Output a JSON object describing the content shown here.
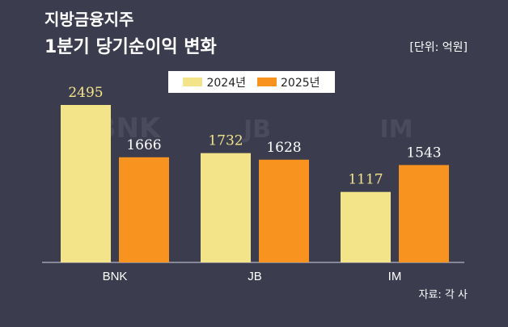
{
  "title_line1": "지방금융지주",
  "title_line2": "1분기 당기순이익 변화",
  "unit_label": "[단위: 억원]",
  "source": "자료: 각 사",
  "watermarks": [
    "BNK",
    "JB",
    "IM"
  ],
  "colors": {
    "background": "#3b3d4f",
    "series_2024": "#f3e48a",
    "series_2025": "#f7931e",
    "label_2024": "#f3e48a",
    "label_2025": "#ffffff"
  },
  "chart_data": {
    "type": "bar",
    "categories": [
      "BNK",
      "JB",
      "IM"
    ],
    "series": [
      {
        "name": "2024년",
        "values": [
          2495,
          1732,
          1117
        ]
      },
      {
        "name": "2025년",
        "values": [
          1666,
          1628,
          1543
        ]
      }
    ],
    "ylim": [
      0,
      2495
    ],
    "grid": false,
    "legend_position": "top-center",
    "title": "1분기 당기순이익 변화",
    "xlabel": "",
    "ylabel": ""
  }
}
